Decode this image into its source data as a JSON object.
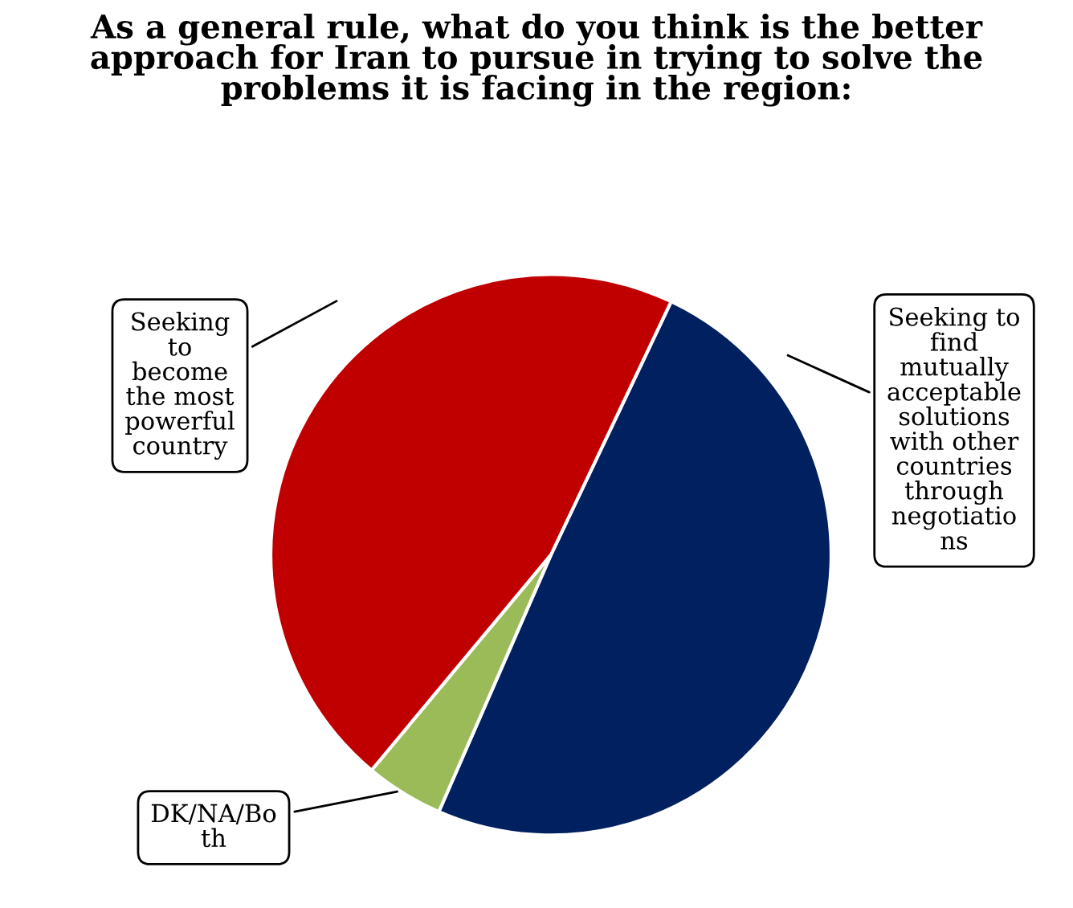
{
  "chart_data": {
    "type": "pie",
    "title": "As a general rule, what do you think is the better approach for Iran to pursue in trying to solve the problems it is facing in the region:",
    "categories": [
      "Seeking to\nfind\nmutually\nacceptable\nsolutions\nwith other\ncountries\nthrough\nnegotiatio\nns",
      "DK/NA/Bo\nth",
      "Seeking\nto\nbecome\nthe most\npowerful\ncountry"
    ],
    "values": [
      49.5,
      4.5,
      46
    ],
    "colors": [
      "#002060",
      "#9bbb59",
      "#c00000"
    ],
    "legend": false
  }
}
